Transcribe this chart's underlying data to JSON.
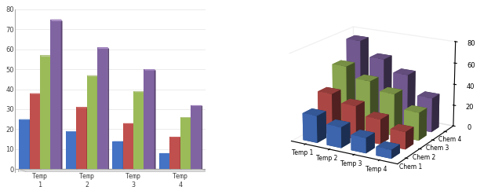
{
  "categories": [
    "Temp 1",
    "Temp 2",
    "Temp 3",
    "Temp 4"
  ],
  "series": [
    "Chem 1",
    "Chem 2",
    "Chem 3",
    "Chem 4"
  ],
  "values": [
    [
      25,
      19,
      14,
      8
    ],
    [
      38,
      31,
      23,
      16
    ],
    [
      57,
      47,
      39,
      26
    ],
    [
      75,
      61,
      50,
      32
    ]
  ],
  "colors": [
    "#4472C4",
    "#C0504D",
    "#9BBB59",
    "#8064A2"
  ],
  "colors_dark": [
    "#2E4F8A",
    "#8B2E2C",
    "#6B8430",
    "#5A4472"
  ],
  "colors_top": [
    "#8AAAD8",
    "#D47F7D",
    "#BFCC9A",
    "#AA8EC4"
  ],
  "ylim": [
    0,
    80
  ],
  "yticks": [
    0,
    10,
    20,
    30,
    40,
    50,
    60,
    70,
    80
  ],
  "background_color": "#FFFFFF",
  "legend_labels": [
    "Chem 1",
    "Chem 2",
    "Chem 3",
    "Chem 4"
  ]
}
